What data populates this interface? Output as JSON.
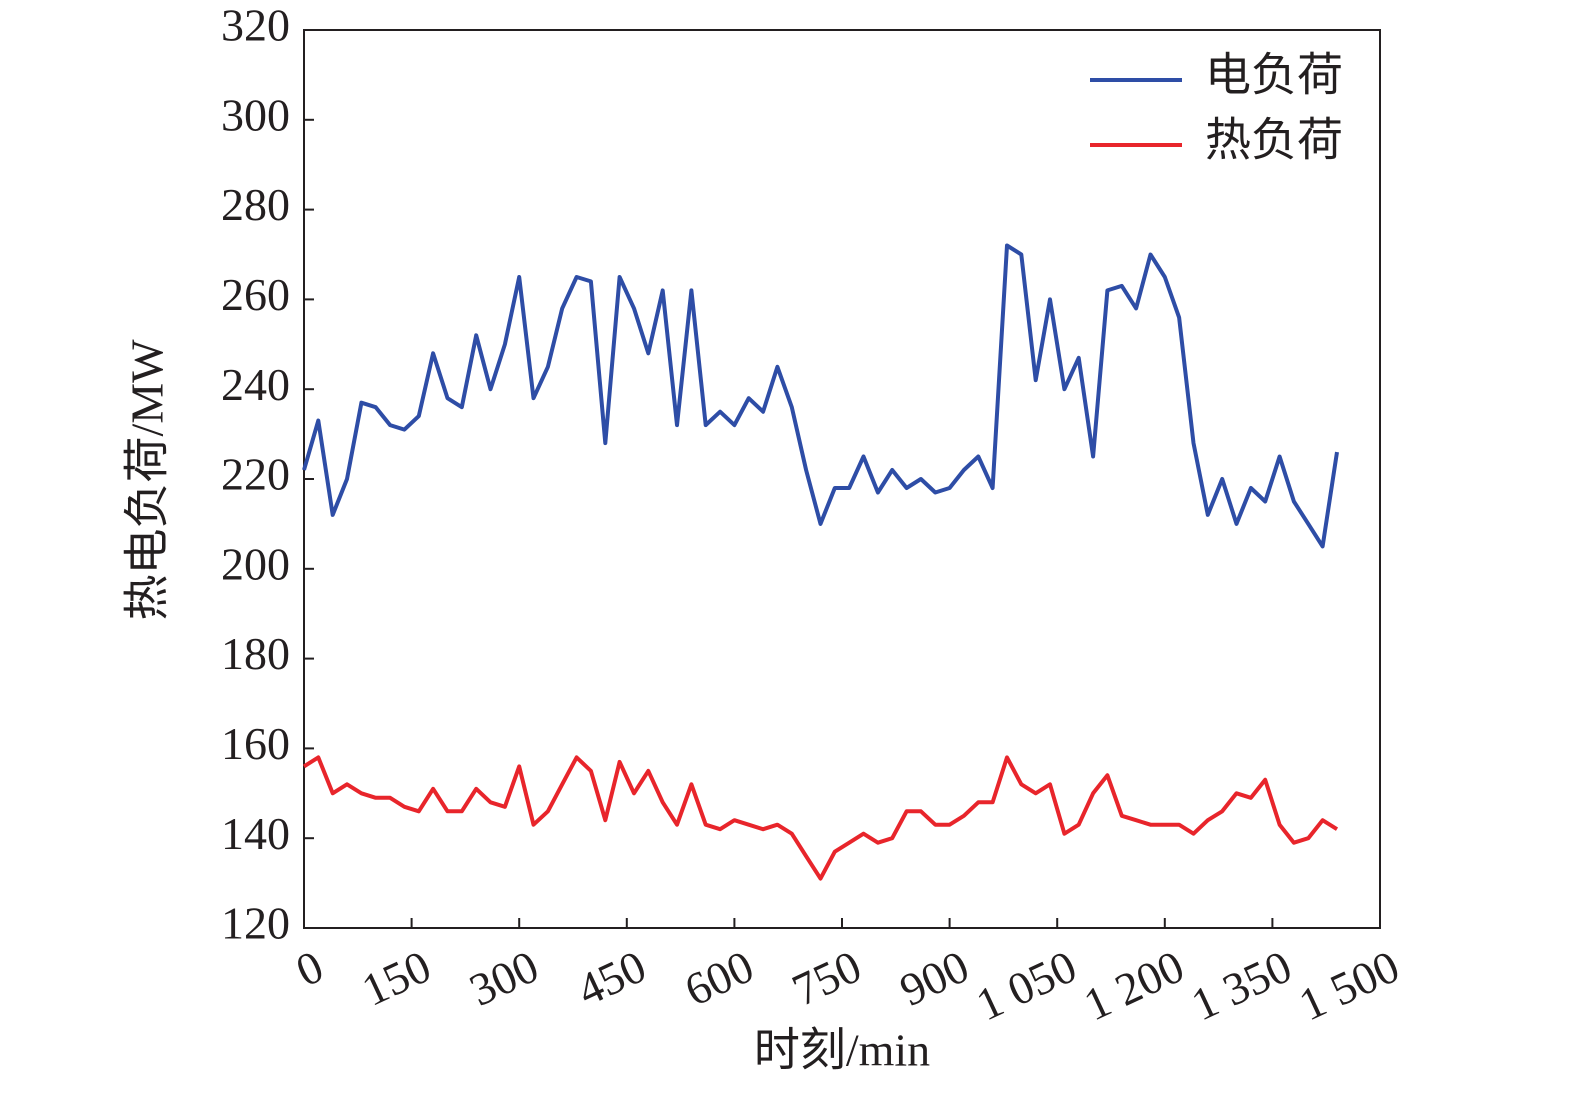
{
  "chart_data": {
    "type": "line",
    "x_label": "时刻/min",
    "y_label": "热电负荷/MW",
    "x": [
      0,
      20,
      40,
      60,
      80,
      100,
      120,
      140,
      160,
      180,
      200,
      220,
      240,
      260,
      280,
      300,
      320,
      340,
      360,
      380,
      400,
      420,
      440,
      460,
      480,
      500,
      520,
      540,
      560,
      580,
      600,
      620,
      640,
      660,
      680,
      700,
      720,
      740,
      760,
      780,
      800,
      820,
      840,
      860,
      880,
      900,
      920,
      940,
      960,
      980,
      1000,
      1020,
      1040,
      1060,
      1080,
      1100,
      1120,
      1140,
      1160,
      1180,
      1200,
      1220,
      1240,
      1260,
      1280,
      1300,
      1320,
      1340,
      1360,
      1380,
      1400,
      1420,
      1440
    ],
    "series": [
      {
        "name": "电负荷",
        "color": "#2e4da6",
        "values": [
          222,
          233,
          212,
          220,
          237,
          236,
          232,
          231,
          234,
          248,
          238,
          236,
          252,
          240,
          250,
          265,
          238,
          245,
          258,
          265,
          264,
          228,
          265,
          258,
          248,
          262,
          232,
          262,
          232,
          235,
          232,
          238,
          235,
          245,
          236,
          222,
          210,
          218,
          218,
          225,
          217,
          222,
          218,
          220,
          217,
          218,
          222,
          225,
          218,
          272,
          270,
          242,
          260,
          240,
          247,
          225,
          262,
          263,
          258,
          270,
          265,
          256,
          228,
          212,
          220,
          210,
          218,
          215,
          225,
          215,
          210,
          205,
          226
        ]
      },
      {
        "name": "热负荷",
        "color": "#e8252b",
        "values": [
          156,
          158,
          150,
          152,
          150,
          149,
          149,
          147,
          146,
          151,
          146,
          146,
          151,
          148,
          147,
          156,
          143,
          146,
          152,
          158,
          155,
          144,
          157,
          150,
          155,
          148,
          143,
          152,
          143,
          142,
          144,
          143,
          142,
          143,
          141,
          136,
          131,
          137,
          139,
          141,
          139,
          140,
          146,
          146,
          143,
          143,
          145,
          148,
          148,
          158,
          152,
          150,
          152,
          141,
          143,
          150,
          154,
          145,
          144,
          143,
          143,
          143,
          141,
          144,
          146,
          150,
          149,
          153,
          143,
          139,
          140,
          144,
          142
        ]
      }
    ],
    "xlim": [
      0,
      1500
    ],
    "xticks": [
      0,
      150,
      300,
      450,
      600,
      750,
      900,
      {
        "value": 1050,
        "label": "1 050"
      },
      {
        "value": 1200,
        "label": "1 200"
      },
      {
        "value": 1350,
        "label": "1 350"
      },
      {
        "value": 1500,
        "label": "1 500"
      }
    ],
    "ylim": [
      120,
      320
    ],
    "yticks": [
      120,
      140,
      160,
      180,
      200,
      220,
      240,
      260,
      280,
      300,
      320
    ],
    "legend": "upper right"
  }
}
